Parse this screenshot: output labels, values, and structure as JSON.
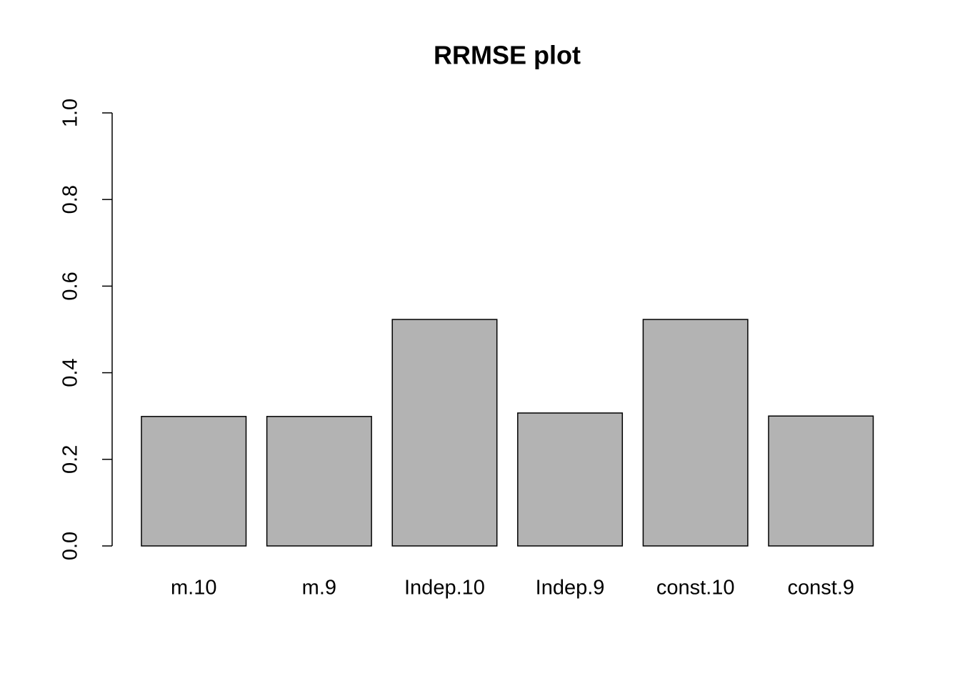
{
  "chart_data": {
    "type": "bar",
    "title": "RRMSE plot",
    "categories": [
      "m.10",
      "m.9",
      "Indep.10",
      "Indep.9",
      "const.10",
      "const.9"
    ],
    "values": [
      0.299,
      0.299,
      0.523,
      0.307,
      0.523,
      0.3
    ],
    "color": "#b3b3b3",
    "ylim": [
      0,
      1
    ],
    "yticks": [
      {
        "value": 0,
        "label": "0.0"
      },
      0.2,
      0.4,
      0.6,
      0.8,
      {
        "value": 1,
        "label": "1.0"
      }
    ],
    "grid": false
  }
}
